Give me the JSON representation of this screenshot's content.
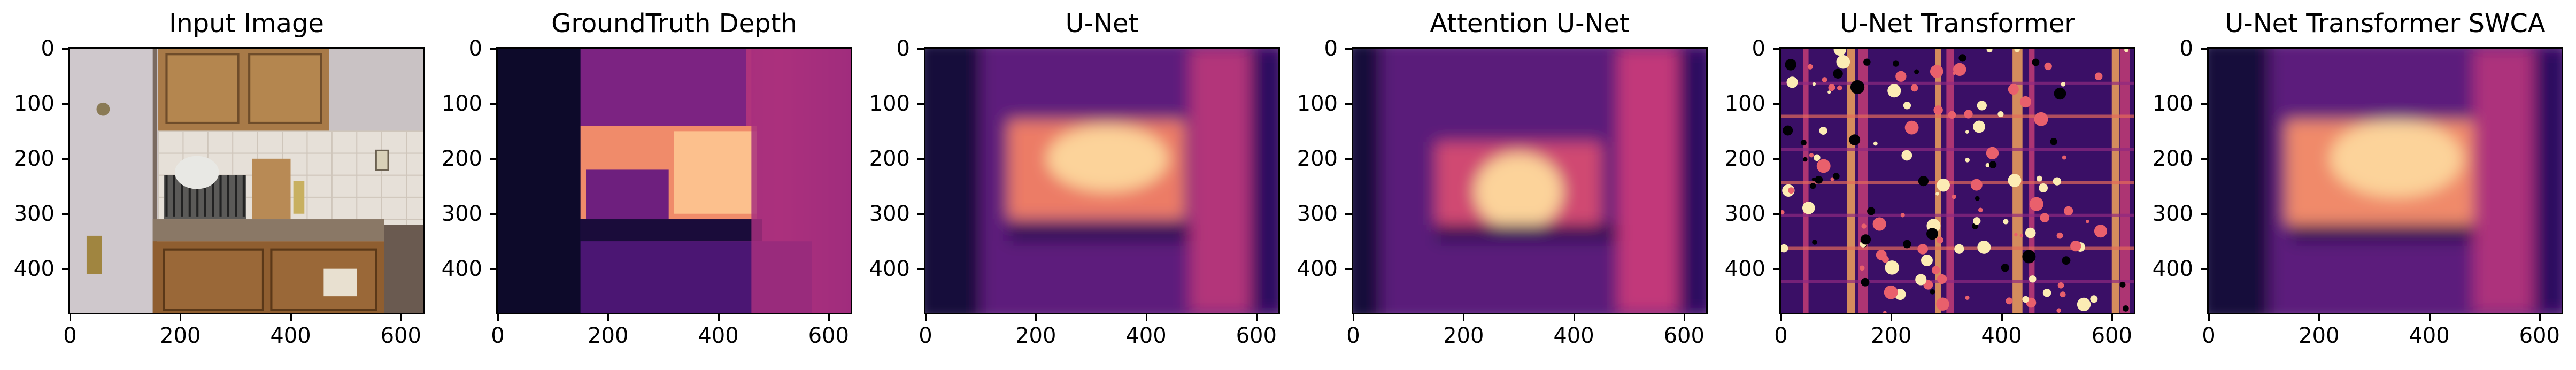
{
  "panels": [
    {
      "title": "Input Image",
      "kind": "photo"
    },
    {
      "title": "GroundTruth Depth",
      "kind": "gt"
    },
    {
      "title": "U-Net",
      "kind": "unet"
    },
    {
      "title": "Attention U-Net",
      "kind": "att"
    },
    {
      "title": "U-Net Transformer",
      "kind": "noise"
    },
    {
      "title": "U-Net Transformer SWCA",
      "kind": "swca"
    }
  ],
  "axes": {
    "y_ticks": [
      "0",
      "100",
      "200",
      "300",
      "400"
    ],
    "x_ticks": [
      "0",
      "200",
      "400",
      "600"
    ],
    "x_range": [
      0,
      640
    ],
    "y_range": [
      0,
      480
    ]
  },
  "colors": {
    "colormap": "magma"
  }
}
